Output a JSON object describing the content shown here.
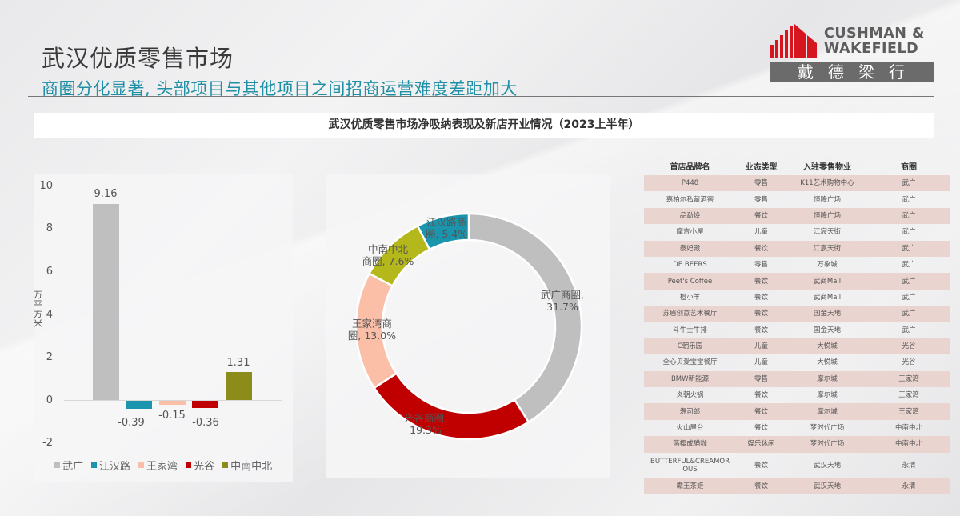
{
  "header": {
    "title": "武汉优质零售市场",
    "subtitle": "商圈分化显著, 头部项目与其他项目之间招商运营难度差距加大"
  },
  "logo": {
    "line1": "CUSHMAN &",
    "line2": "WAKEFIELD",
    "chinese": "戴德梁行",
    "brand_color": "#d7151f"
  },
  "section_title": "武汉优质零售市场净吸纳表现及新店开业情况（2023上半年）",
  "chart_data": [
    {
      "type": "bar",
      "title": "",
      "ylabel": "万平方米",
      "xlabel": "",
      "ylim": [
        -2,
        10
      ],
      "yticks": [
        "10",
        "8",
        "6",
        "4",
        "2",
        "0",
        "-2"
      ],
      "grid": false,
      "legend_position": "bottom",
      "categories": [
        "武广",
        "江汉路",
        "王家湾",
        "光谷",
        "中南中北"
      ],
      "values": [
        9.16,
        -0.39,
        -0.15,
        -0.36,
        1.31
      ],
      "value_labels": [
        "9.16",
        "-0.39",
        "-0.15",
        "-0.36",
        "1.31"
      ],
      "colors": [
        "#bfbfbf",
        "#1b95ad",
        "#fbbfa8",
        "#c00000",
        "#8c8c1a"
      ]
    },
    {
      "type": "pie",
      "subtype": "donut",
      "title": "",
      "legend_position": "none",
      "categories": [
        "武广商圈",
        "光谷商圈",
        "王家湾商圈",
        "中南中北商圈",
        "江汉路商圈"
      ],
      "values": [
        31.7,
        19.3,
        13.0,
        7.6,
        5.4
      ],
      "labels": [
        "武广商圈, 31.7%",
        "光谷商圈, 19.3%",
        "王家湾商圈, 13.0%",
        "中南中北商圈, 7.6%",
        "江汉路商圈, 5.4%"
      ],
      "colors": [
        "#bfbfbf",
        "#c00000",
        "#fbbfa8",
        "#b4b81a",
        "#1b95ad"
      ]
    }
  ],
  "bar": {
    "yticks": [
      "10",
      "8",
      "6",
      "4",
      "2",
      "0",
      "-2"
    ],
    "ylabel": "万平方米",
    "labels": [
      "9.16",
      "-0.39",
      "-0.15",
      "-0.36",
      "1.31"
    ],
    "legend": [
      "武广",
      "江汉路",
      "王家湾",
      "光谷",
      "中南中北"
    ]
  },
  "donut": {
    "labels": [
      {
        "name": "武广商圈,",
        "pct": "31.7%"
      },
      {
        "name": "光谷商圈,",
        "pct": "19.3%"
      },
      {
        "name": "王家湾商",
        "pct": "圈, 13.0%"
      },
      {
        "name": "中南中北",
        "pct": "商圈, 7.6%"
      },
      {
        "name": "江汉路商",
        "pct": "圈, 5.4%"
      }
    ]
  },
  "table": {
    "headers": [
      "首店品牌名",
      "业态类型",
      "入驻零售物业",
      "商圈"
    ],
    "rows": [
      [
        "P448",
        "零售",
        "K11艺术购物中心",
        "武广"
      ],
      [
        "嘉柏尔私藏酒窖",
        "零售",
        "恒隆广场",
        "武广"
      ],
      [
        "品勐焕",
        "餐饮",
        "恒隆广场",
        "武广"
      ],
      [
        "摩吉小屋",
        "儿童",
        "江宸天街",
        "武广"
      ],
      [
        "泰妃殿",
        "餐饮",
        "江宸天街",
        "武广"
      ],
      [
        "DE BEERS",
        "零售",
        "万象城",
        "武广"
      ],
      [
        "Peet's Coffee",
        "餐饮",
        "武商Mall",
        "武广"
      ],
      [
        "橙小羊",
        "餐饮",
        "武商Mall",
        "武广"
      ],
      [
        "苏眉创意艺术餐厅",
        "餐饮",
        "国金天地",
        "武广"
      ],
      [
        "斗牛士牛排",
        "餐饮",
        "国金天地",
        "武广"
      ],
      [
        "C朝乐园",
        "儿童",
        "大悦城",
        "光谷"
      ],
      [
        "全心贝爱宝宝餐厅",
        "儿童",
        "大悦城",
        "光谷"
      ],
      [
        "BMW新能源",
        "零售",
        "摩尔城",
        "王家湾"
      ],
      [
        "炎朝火锅",
        "餐饮",
        "摩尔城",
        "王家湾"
      ],
      [
        "寿司郎",
        "餐饮",
        "摩尔城",
        "王家湾"
      ],
      [
        "火山屋台",
        "餐饮",
        "梦时代广场",
        "中南中北"
      ],
      [
        "落樱成猫咖",
        "娱乐休闲",
        "梦时代广场",
        "中南中北"
      ],
      [
        "BUTTERFUL&CREAMOROUS",
        "餐饮",
        "武汉天地",
        "永清"
      ],
      [
        "霸王茶姬",
        "餐饮",
        "武汉天地",
        "永清"
      ]
    ]
  }
}
